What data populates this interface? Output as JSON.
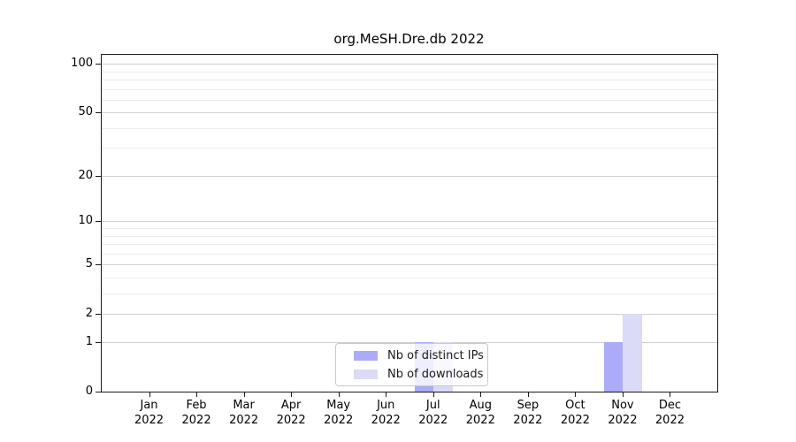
{
  "chart_data": {
    "type": "bar",
    "title": "org.MeSH.Dre.db 2022",
    "categories": [
      "Jan",
      "Feb",
      "Mar",
      "Apr",
      "May",
      "Jun",
      "Jul",
      "Aug",
      "Sep",
      "Oct",
      "Nov",
      "Dec"
    ],
    "year": "2022",
    "series": [
      {
        "name": "Nb of distinct IPs",
        "color": "#ababf7",
        "values": [
          0,
          0,
          0,
          0,
          0,
          0,
          1,
          0,
          0,
          0,
          1,
          0
        ]
      },
      {
        "name": "Nb of downloads",
        "color": "#dbdbf7",
        "values": [
          0,
          0,
          0,
          0,
          0,
          0,
          1,
          0,
          0,
          0,
          2,
          0
        ]
      }
    ],
    "y_ticks": [
      0,
      1,
      2,
      5,
      10,
      20,
      50,
      100
    ],
    "y_minor_ticks": [
      3,
      4,
      6,
      7,
      8,
      9,
      30,
      40,
      60,
      70,
      80,
      90
    ],
    "y_scale": "log1p",
    "ylim": [
      0,
      114
    ],
    "xlabel": "",
    "ylabel": "",
    "grid": "horizontal",
    "legend_position": "inside-bottom-center"
  }
}
